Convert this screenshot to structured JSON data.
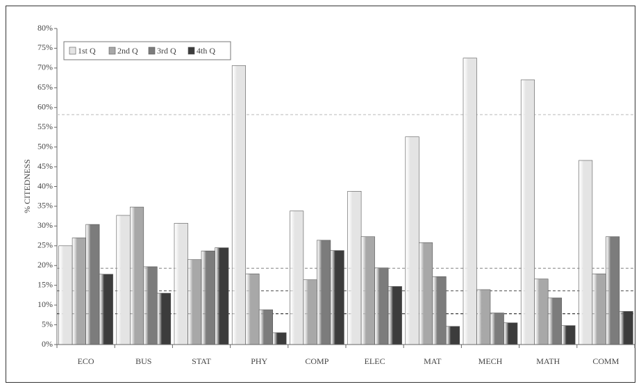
{
  "chart_data": {
    "type": "bar",
    "y_label": "% CITEDNESS",
    "categories": [
      "ECO",
      "BUS",
      "STAT",
      "PHY",
      "COMP",
      "ELEC",
      "MAT",
      "MECH",
      "MATH",
      "COMM"
    ],
    "series": [
      {
        "name": "1st Q",
        "color": "#e4e4e4",
        "values": [
          25.0,
          32.7,
          30.7,
          70.6,
          33.8,
          38.8,
          52.6,
          72.5,
          67.0,
          46.6
        ]
      },
      {
        "name": "2nd Q",
        "color": "#a8a8a8",
        "values": [
          27.0,
          34.8,
          21.5,
          17.9,
          16.4,
          27.3,
          25.8,
          13.9,
          16.6,
          17.9
        ]
      },
      {
        "name": "3rd Q",
        "color": "#7c7c7c",
        "values": [
          30.4,
          19.7,
          23.7,
          8.8,
          26.4,
          19.4,
          17.2,
          8.0,
          11.8,
          27.3
        ]
      },
      {
        "name": "4th Q",
        "color": "#3c3c3c",
        "values": [
          17.8,
          13.0,
          24.5,
          3.0,
          23.8,
          14.7,
          4.6,
          5.5,
          4.8,
          8.4
        ]
      }
    ],
    "reference_lines": [
      {
        "value": 58.2,
        "color": "#c8c8c8"
      },
      {
        "value": 19.3,
        "color": "#999999"
      },
      {
        "value": 13.6,
        "color": "#6e6e6e"
      },
      {
        "value": 7.8,
        "color": "#3c3c3c"
      }
    ],
    "ylim": [
      0,
      80
    ],
    "yticks": [
      {
        "value": 0,
        "label": "0%"
      },
      {
        "value": 5,
        "label": "5%"
      },
      {
        "value": 10,
        "label": "10%"
      },
      {
        "value": 15,
        "label": "15%"
      },
      {
        "value": 20,
        "label": "20%"
      },
      {
        "value": 25,
        "label": "25%"
      },
      {
        "value": 30,
        "label": "30%"
      },
      {
        "value": 35,
        "label": "35%"
      },
      {
        "value": 40,
        "label": "40%"
      },
      {
        "value": 45,
        "label": "45%"
      },
      {
        "value": 50,
        "label": "50%"
      },
      {
        "value": 55,
        "label": "55%"
      },
      {
        "value": 60,
        "label": "60%"
      },
      {
        "value": 65,
        "label": "65%"
      },
      {
        "value": 70,
        "label": "70%"
      },
      {
        "value": 75,
        "label": "75%"
      },
      {
        "value": 80,
        "label": "80%"
      }
    ],
    "legend": "top-left"
  }
}
